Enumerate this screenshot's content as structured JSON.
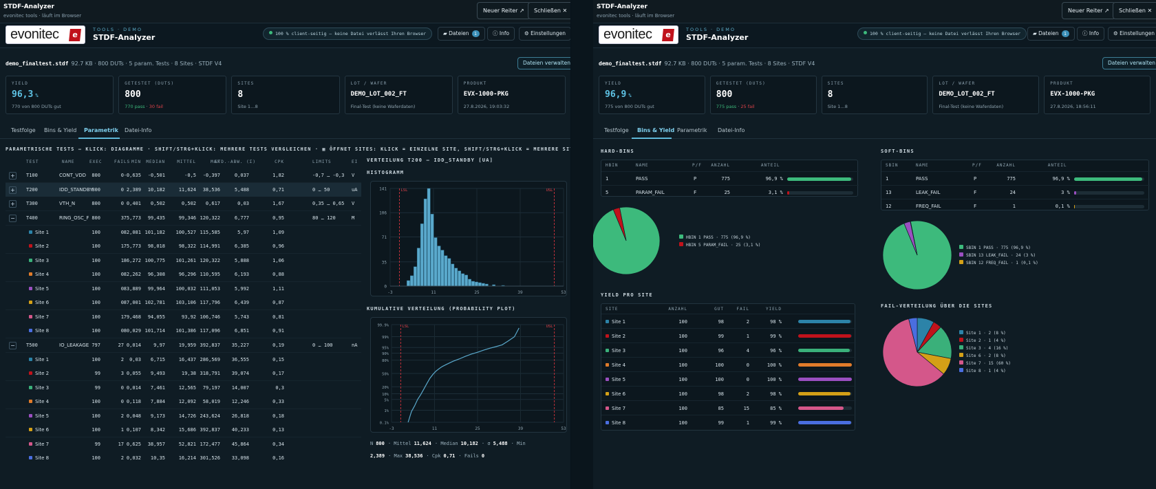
{
  "colors": {
    "site1": "#2c83a8",
    "site2": "#c0121b",
    "site3": "#3ab07a",
    "site4": "#e07b2a",
    "site5": "#9a4fc0",
    "site6": "#d4a017",
    "site7": "#d4578a",
    "site8": "#4a6ee0",
    "hist": "#5aa9cc",
    "pass": "#3dba7c"
  },
  "left": {
    "titlebar": {
      "title": "STDF-Analyzer",
      "subtitle": "evonitec tools · läuft im Browser",
      "new_tab": "Neuer Reiter ↗",
      "close": "Schließen ✕"
    },
    "header": {
      "logo_text": "evonitec",
      "logo_mark": "e",
      "kicker": "TOOLS · DEMO",
      "app": "STDF-Analyzer",
      "privacy": "100 % client-seitig – keine Datei verlässt Ihren Browser",
      "files": "Dateien",
      "files_count": "1",
      "info": "ⓘ Info",
      "settings": "⚙ Einstellungen"
    },
    "file": {
      "name": "demo_finaltest.stdf",
      "meta": "92.7 KB · 800 DUTs · 5 param. Tests · 8 Sites · STDF V4",
      "manage": "Dateien verwalten"
    },
    "cards": {
      "yield": {
        "k": "YIELD",
        "v": "96,3",
        "unit": "%",
        "sub": "770 von 800 DUTs gut"
      },
      "tested": {
        "k": "GETESTET (DUTS)",
        "v": "800",
        "pass": "770 pass",
        "sep": " · ",
        "fail": "30 fail"
      },
      "sites": {
        "k": "SITES",
        "v": "8",
        "sub": "Site 1…8"
      },
      "lot": {
        "k": "LOT / WAFER",
        "v": "DEMO_LOT_002_FT",
        "sub": "Final-Test (keine Waferdaten)"
      },
      "product": {
        "k": "PRODUKT",
        "v": "EVX-1000-PKG",
        "sub": "27.8.2026, 19:03:32"
      }
    },
    "tabs": [
      "Testfolge",
      "Bins & Yield",
      "Parametrik",
      "Datei-Info"
    ],
    "param": {
      "heading": "PARAMETRISCHE TESTS — KLICK: DIAGRAMME · SHIFT/STRG+KLICK: MEHRERE TESTS VERGLEICHEN · ▦ ÖFFNET SITES: KLICK = EINZELNE SITE, SHIFT/STRG+KLICK = MEHRERE SITES",
      "columns": [
        "TEST",
        "NAME",
        "EXEC",
        "FAILS",
        "MIN",
        "MEDIAN",
        "MITTEL",
        "MAX",
        "STD.-ABW. (Σ)",
        "CPK",
        "LIMITS",
        "EI"
      ],
      "rows": [
        {
          "kind": "test",
          "exp": "+",
          "test": "T100",
          "name": "CONT_VDD",
          "exec": "800",
          "fails": "0",
          "min": "-0,635",
          "median": "-0,501",
          "mean": "-0,5",
          "max": "-0,397",
          "std": "0,037",
          "cpk": "1,82",
          "limits": "-0,7 … -0,3",
          "unit": "V"
        },
        {
          "kind": "test",
          "exp": "+",
          "test": "T200",
          "name": "IDD_STANDBY",
          "exec": "800",
          "fails": "0",
          "min": "2,389",
          "median": "10,182",
          "mean": "11,624",
          "max": "38,536",
          "std": "5,488",
          "cpk": "0,71",
          "limits": "0 … 50",
          "unit": "uA",
          "sel": true
        },
        {
          "kind": "test",
          "exp": "+",
          "test": "T300",
          "name": "VTH_N",
          "exec": "800",
          "fails": "0",
          "min": "0,401",
          "median": "0,502",
          "mean": "0,502",
          "max": "0,617",
          "std": "0,03",
          "cpk": "1,67",
          "limits": "0,35 … 0,65",
          "unit": "V"
        },
        {
          "kind": "test",
          "exp": "−",
          "test": "T400",
          "name": "RING_OSC_F",
          "exec": "800",
          "fails": "3",
          "min": "75,773",
          "median": "99,435",
          "mean": "99,346",
          "max": "120,322",
          "std": "6,777",
          "cpk": "0,95",
          "limits": "80 … 120",
          "unit": "M"
        },
        {
          "kind": "site",
          "site": "Site 1",
          "c": "site1",
          "exec": "100",
          "fails": "0",
          "min": "82,081",
          "median": "101,182",
          "mean": "100,527",
          "max": "115,585",
          "std": "5,97",
          "cpk": "1,09"
        },
        {
          "kind": "site",
          "site": "Site 2",
          "c": "site2",
          "exec": "100",
          "fails": "1",
          "min": "75,773",
          "median": "98,018",
          "mean": "98,322",
          "max": "114,991",
          "std": "6,385",
          "cpk": "0,96"
        },
        {
          "kind": "site",
          "site": "Site 3",
          "c": "site3",
          "exec": "100",
          "fails": "1",
          "min": "86,272",
          "median": "100,775",
          "mean": "101,261",
          "max": "120,322",
          "std": "5,888",
          "cpk": "1,06"
        },
        {
          "kind": "site",
          "site": "Site 4",
          "c": "site4",
          "exec": "100",
          "fails": "0",
          "min": "82,262",
          "median": "96,308",
          "mean": "96,296",
          "max": "110,595",
          "std": "6,193",
          "cpk": "0,88"
        },
        {
          "kind": "site",
          "site": "Site 5",
          "c": "site5",
          "exec": "100",
          "fails": "0",
          "min": "83,889",
          "median": "99,964",
          "mean": "100,032",
          "max": "111,053",
          "std": "5,992",
          "cpk": "1,11"
        },
        {
          "kind": "site",
          "site": "Site 6",
          "c": "site6",
          "exec": "100",
          "fails": "0",
          "min": "87,001",
          "median": "102,781",
          "mean": "103,106",
          "max": "117,796",
          "std": "6,439",
          "cpk": "0,87"
        },
        {
          "kind": "site",
          "site": "Site 7",
          "c": "site7",
          "exec": "100",
          "fails": "1",
          "min": "79,468",
          "median": "94,055",
          "mean": "93,92",
          "max": "106,746",
          "std": "5,743",
          "cpk": "0,81"
        },
        {
          "kind": "site",
          "site": "Site 8",
          "c": "site8",
          "exec": "100",
          "fails": "0",
          "min": "80,029",
          "median": "101,714",
          "mean": "101,386",
          "max": "117,096",
          "std": "6,851",
          "cpk": "0,91"
        },
        {
          "kind": "test",
          "exp": "−",
          "test": "T500",
          "name": "IO_LEAKAGE",
          "exec": "797",
          "fails": "27",
          "min": "0,014",
          "median": "9,97",
          "mean": "19,959",
          "max": "392,837",
          "std": "35,227",
          "cpk": "0,19",
          "limits": "0 … 100",
          "unit": "nA"
        },
        {
          "kind": "site",
          "site": "Site 1",
          "c": "site1",
          "exec": "100",
          "fails": "2",
          "min": "0,03",
          "median": "6,715",
          "mean": "16,437",
          "max": "286,569",
          "std": "36,555",
          "cpk": "0,15"
        },
        {
          "kind": "site",
          "site": "Site 2",
          "c": "site2",
          "exec": "99",
          "fails": "3",
          "min": "0,055",
          "median": "9,493",
          "mean": "19,38",
          "max": "318,791",
          "std": "39,074",
          "cpk": "0,17"
        },
        {
          "kind": "site",
          "site": "Site 3",
          "c": "site3",
          "exec": "99",
          "fails": "0",
          "min": "0,014",
          "median": "7,461",
          "mean": "12,565",
          "max": "79,197",
          "std": "14,007",
          "cpk": "0,3"
        },
        {
          "kind": "site",
          "site": "Site 4",
          "c": "site4",
          "exec": "100",
          "fails": "0",
          "min": "0,118",
          "median": "7,884",
          "mean": "12,092",
          "max": "58,019",
          "std": "12,246",
          "cpk": "0,33"
        },
        {
          "kind": "site",
          "site": "Site 5",
          "c": "site5",
          "exec": "100",
          "fails": "2",
          "min": "0,048",
          "median": "9,173",
          "mean": "14,726",
          "max": "243,624",
          "std": "26,818",
          "cpk": "0,18"
        },
        {
          "kind": "site",
          "site": "Site 6",
          "c": "site6",
          "exec": "100",
          "fails": "1",
          "min": "0,107",
          "median": "8,342",
          "mean": "15,686",
          "max": "392,837",
          "std": "40,233",
          "cpk": "0,13"
        },
        {
          "kind": "site",
          "site": "Site 7",
          "c": "site7",
          "exec": "99",
          "fails": "17",
          "min": "0,625",
          "median": "38,957",
          "mean": "52,821",
          "max": "172,477",
          "std": "45,864",
          "cpk": "0,34"
        },
        {
          "kind": "site",
          "site": "Site 8",
          "c": "site8",
          "exec": "100",
          "fails": "2",
          "min": "0,032",
          "median": "10,35",
          "mean": "16,214",
          "max": "301,526",
          "std": "33,098",
          "cpk": "0,16"
        }
      ],
      "dist_title": "VERTEILUNG T200 — IDD_STANDBY [UA]",
      "hist_title": "HISTOGRAMM",
      "cdf_title": "KUMULATIVE VERTEILUNG (PROBABILITY PLOT)",
      "stats": {
        "n_l": "N",
        "n": "800",
        "mean_l": "· Mittel",
        "mean": "11,624",
        "med_l": "· Median",
        "med": "10,182",
        "sd_l": "· σ",
        "sd": "5,488",
        "min_l": "· Min",
        "min": "2,389",
        "max_l": "· Max",
        "max": "38,536",
        "cpk_l": "· Cpk",
        "cpk": "0,71",
        "fails_l": "· Fails",
        "fails": "0"
      }
    }
  },
  "right": {
    "titlebar": {
      "title": "STDF-Analyzer",
      "subtitle": "evonitec tools · läuft im Browser",
      "new_tab": "Neuer Reiter ↗",
      "close": "Schließen ✕"
    },
    "header": {
      "logo_text": "evonitec",
      "logo_mark": "e",
      "kicker": "TOOLS · DEMO",
      "app": "STDF-Analyzer",
      "privacy": "100 % client-seitig – keine Datei verlässt Ihren Browser",
      "files": "Dateien",
      "files_count": "1",
      "info": "ⓘ Info",
      "settings": "⚙ Einstellungen"
    },
    "file": {
      "name": "demo_finaltest.stdf",
      "meta": "92.7 KB · 800 DUTs · 5 param. Tests · 8 Sites · STDF V4",
      "manage": "Dateien verwalten"
    },
    "cards": {
      "yield": {
        "k": "YIELD",
        "v": "96,9",
        "unit": "%",
        "sub": "775 von 800 DUTs gut"
      },
      "tested": {
        "k": "GETESTET (DUTS)",
        "v": "800",
        "pass": "775 pass",
        "sep": " · ",
        "fail": "25 fail"
      },
      "sites": {
        "k": "SITES",
        "v": "8",
        "sub": "Site 1…8"
      },
      "lot": {
        "k": "LOT / WAFER",
        "v": "DEMO_LOT_002_FT",
        "sub": "Final-Test (keine Waferdaten)"
      },
      "product": {
        "k": "PRODUKT",
        "v": "EVX-1000-PKG",
        "sub": "27.8.2026, 18:56:11"
      }
    },
    "tabs": [
      "Testfolge",
      "Bins & Yield",
      "Parametrik",
      "Datei-Info"
    ],
    "hard": {
      "title": "HARD-BINS",
      "cols": [
        "HBIN",
        "NAME",
        "P/F",
        "ANZAHL",
        "ANTEIL"
      ],
      "rows": [
        {
          "bin": "1",
          "name": "PASS",
          "pf": "P",
          "n": "775",
          "pct": "96,9 %",
          "frac": 0.969
        },
        {
          "bin": "5",
          "name": "PARAM_FAIL",
          "pf": "F",
          "n": "25",
          "pct": "3,1 %",
          "frac": 0.031
        }
      ],
      "legend": [
        "HBIN 1 PASS · 775 (96,9 %)",
        "HBIN 5 PARAM_FAIL · 25 (3,1 %)"
      ]
    },
    "soft": {
      "title": "SOFT-BINS",
      "cols": [
        "SBIN",
        "NAME",
        "P/F",
        "ANZAHL",
        "ANTEIL"
      ],
      "rows": [
        {
          "bin": "1",
          "name": "PASS",
          "pf": "P",
          "n": "775",
          "pct": "96,9 %",
          "frac": 0.969
        },
        {
          "bin": "13",
          "name": "LEAK_FAIL",
          "pf": "F",
          "n": "24",
          "pct": "3 %",
          "frac": 0.03
        },
        {
          "bin": "12",
          "name": "FREQ_FAIL",
          "pf": "F",
          "n": "1",
          "pct": "0,1 %",
          "frac": 0.001
        }
      ],
      "legend": [
        "SBIN 1 PASS · 775 (96,9 %)",
        "SBIN 13 LEAK_FAIL · 24 (3 %)",
        "SBIN 12 FREQ_FAIL · 1 (0,1 %)"
      ]
    },
    "site_yield": {
      "title": "YIELD PRO SITE",
      "cols": [
        "SITE",
        "ANZAHL",
        "GUT",
        "FAIL",
        "YIELD"
      ],
      "rows": [
        {
          "site": "Site 1",
          "c": "site1",
          "n": "100",
          "gut": "98",
          "fail": "2",
          "y": "98 %",
          "frac": 0.98
        },
        {
          "site": "Site 2",
          "c": "site2",
          "n": "100",
          "gut": "99",
          "fail": "1",
          "y": "99 %",
          "frac": 0.99
        },
        {
          "site": "Site 3",
          "c": "site3",
          "n": "100",
          "gut": "96",
          "fail": "4",
          "y": "96 %",
          "frac": 0.96
        },
        {
          "site": "Site 4",
          "c": "site4",
          "n": "100",
          "gut": "100",
          "fail": "0",
          "y": "100 %",
          "frac": 1.0
        },
        {
          "site": "Site 5",
          "c": "site5",
          "n": "100",
          "gut": "100",
          "fail": "0",
          "y": "100 %",
          "frac": 1.0
        },
        {
          "site": "Site 6",
          "c": "site6",
          "n": "100",
          "gut": "98",
          "fail": "2",
          "y": "98 %",
          "frac": 0.98
        },
        {
          "site": "Site 7",
          "c": "site7",
          "n": "100",
          "gut": "85",
          "fail": "15",
          "y": "85 %",
          "frac": 0.85
        },
        {
          "site": "Site 8",
          "c": "site8",
          "n": "100",
          "gut": "99",
          "fail": "1",
          "y": "99 %",
          "frac": 0.99
        }
      ]
    },
    "fail_dist": {
      "title": "FAIL-VERTEILUNG ÜBER DIE SITES",
      "legend": [
        "Site 1 · 2 (8 %)",
        "Site 2 · 1 (4 %)",
        "Site 3 · 4 (16 %)",
        "Site 6 · 2 (8 %)",
        "Site 7 · 15 (60 %)",
        "Site 8 · 1 (4 %)"
      ]
    }
  },
  "chart_data": [
    {
      "type": "bar",
      "title": "HISTOGRAMM",
      "x_ticks": [
        "-3",
        "11",
        "25",
        "39",
        "53"
      ],
      "y_ticks": [
        "141",
        "106",
        "71",
        "35",
        "0"
      ],
      "xlim": [
        -3,
        53
      ],
      "ylim": [
        0,
        141
      ],
      "limits": {
        "lsl": 0,
        "usl": 50,
        "lsl_label": "LSL",
        "usl_label": "USL"
      },
      "bins": [
        {
          "x0": 2.4,
          "v": 8
        },
        {
          "x0": 3.5,
          "v": 15
        },
        {
          "x0": 4.6,
          "v": 28
        },
        {
          "x0": 5.7,
          "v": 55
        },
        {
          "x0": 6.8,
          "v": 90
        },
        {
          "x0": 7.9,
          "v": 126
        },
        {
          "x0": 9.0,
          "v": 141
        },
        {
          "x0": 10.1,
          "v": 104
        },
        {
          "x0": 11.2,
          "v": 70
        },
        {
          "x0": 12.3,
          "v": 58
        },
        {
          "x0": 13.4,
          "v": 52
        },
        {
          "x0": 14.5,
          "v": 44
        },
        {
          "x0": 15.6,
          "v": 40
        },
        {
          "x0": 16.7,
          "v": 32
        },
        {
          "x0": 17.8,
          "v": 26
        },
        {
          "x0": 18.9,
          "v": 22
        },
        {
          "x0": 20.0,
          "v": 18
        },
        {
          "x0": 21.1,
          "v": 16
        },
        {
          "x0": 22.2,
          "v": 10
        },
        {
          "x0": 23.3,
          "v": 7
        },
        {
          "x0": 24.4,
          "v": 6
        },
        {
          "x0": 25.5,
          "v": 5
        },
        {
          "x0": 26.6,
          "v": 4
        },
        {
          "x0": 27.7,
          "v": 3
        },
        {
          "x0": 30.0,
          "v": 2
        },
        {
          "x0": 33.0,
          "v": 1
        }
      ],
      "bin_width": 1.05
    },
    {
      "type": "line",
      "title": "KUMULATIVE VERTEILUNG (PROBABILITY PLOT)",
      "x_ticks": [
        "-3",
        "11",
        "25",
        "39",
        "53"
      ],
      "y_ticks": [
        "99.9%",
        "99%",
        "95%",
        "90%",
        "80%",
        "50%",
        "20%",
        "10%",
        "5%",
        "1%",
        "0.1%"
      ],
      "xlim": [
        -3,
        53
      ],
      "y_scale": "probit",
      "points": [
        [
          2.4,
          0.1
        ],
        [
          3.5,
          0.8
        ],
        [
          4.5,
          2
        ],
        [
          5.5,
          5
        ],
        [
          6.5,
          9
        ],
        [
          7.5,
          16
        ],
        [
          8.5,
          26
        ],
        [
          9.5,
          38
        ],
        [
          10.5,
          48
        ],
        [
          11.5,
          56
        ],
        [
          12.5,
          62
        ],
        [
          13.5,
          67
        ],
        [
          15,
          72
        ],
        [
          17,
          78
        ],
        [
          19,
          82
        ],
        [
          21,
          86
        ],
        [
          23,
          89
        ],
        [
          25,
          91
        ],
        [
          27,
          93
        ],
        [
          29,
          94.5
        ],
        [
          31,
          95.5
        ],
        [
          33,
          96.5
        ],
        [
          35,
          98
        ],
        [
          37,
          99
        ],
        [
          38.5,
          99.8
        ]
      ]
    },
    {
      "type": "pie",
      "title": "HARD-BINS",
      "labels": [
        "HBIN 1 PASS",
        "HBIN 5 PARAM_FAIL"
      ],
      "values": [
        775,
        25
      ],
      "colors": [
        "#3dba7c",
        "#c0121b"
      ]
    },
    {
      "type": "pie",
      "title": "SOFT-BINS",
      "labels": [
        "SBIN 1 PASS",
        "SBIN 13 LEAK_FAIL",
        "SBIN 12 FREQ_FAIL"
      ],
      "values": [
        775,
        24,
        1
      ],
      "colors": [
        "#3dba7c",
        "#9a4fc0",
        "#d4a017"
      ]
    },
    {
      "type": "pie",
      "title": "FAIL-VERTEILUNG ÜBER DIE SITES",
      "labels": [
        "Site 1",
        "Site 2",
        "Site 3",
        "Site 6",
        "Site 7",
        "Site 8"
      ],
      "values": [
        2,
        1,
        4,
        2,
        15,
        1
      ],
      "colors": [
        "#2c83a8",
        "#c0121b",
        "#3ab07a",
        "#d4a017",
        "#d4578a",
        "#4a6ee0"
      ]
    }
  ]
}
